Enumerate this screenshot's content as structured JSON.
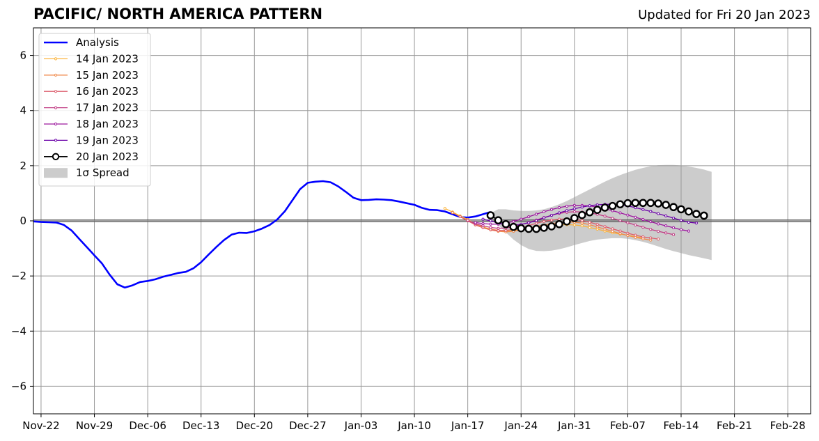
{
  "title": "PACIFIC/ NORTH AMERICA PATTERN",
  "subtitle": "Updated for Fri 20 Jan 2023",
  "chart_data": {
    "type": "line",
    "title": "PACIFIC/ NORTH AMERICA PATTERN",
    "subtitle": "Updated for Fri 20 Jan 2023",
    "xlabel": "",
    "ylabel": "",
    "ylim": [
      -7,
      7
    ],
    "xlim": [
      "2022-11-21",
      "2023-03-03"
    ],
    "x_ticks": [
      "Nov-22",
      "Nov-29",
      "Dec-06",
      "Dec-13",
      "Dec-20",
      "Dec-27",
      "Jan-03",
      "Jan-10",
      "Jan-17",
      "Jan-24",
      "Jan-31",
      "Feb-07",
      "Feb-14",
      "Feb-21",
      "Feb-28"
    ],
    "y_ticks": [
      -6,
      -4,
      -2,
      0,
      2,
      4,
      6
    ],
    "grid": true,
    "legend_position": "top-left",
    "legend": [
      "Analysis",
      "14 Jan 2023",
      "15 Jan 2023",
      "16 Jan 2023",
      "17 Jan 2023",
      "18 Jan 2023",
      "19 Jan 2023",
      "20 Jan 2023",
      "1σ Spread"
    ],
    "colors": {
      "analysis": "#0000ff",
      "14 Jan 2023": "#fbb33a",
      "15 Jan 2023": "#f08a4b",
      "16 Jan 2023": "#dc5c6b",
      "17 Jan 2023": "#c03a83",
      "18 Jan 2023": "#9c179e",
      "19 Jan 2023": "#6a00a8",
      "20 Jan 2023": "#000000",
      "spread": "#cccccc",
      "zero_line": "#444444",
      "grid": "#999999"
    },
    "analysis": {
      "start_date": "2022-11-21",
      "values": [
        -0.02,
        -0.04,
        -0.05,
        -0.06,
        -0.15,
        -0.35,
        -0.65,
        -0.95,
        -1.25,
        -1.55,
        -1.95,
        -2.3,
        -2.42,
        -2.34,
        -2.22,
        -2.18,
        -2.12,
        -2.03,
        -1.96,
        -1.89,
        -1.85,
        -1.72,
        -1.5,
        -1.22,
        -0.95,
        -0.7,
        -0.5,
        -0.43,
        -0.44,
        -0.38,
        -0.28,
        -0.15,
        0.05,
        0.35,
        0.75,
        1.15,
        1.38,
        1.42,
        1.44,
        1.4,
        1.25,
        1.05,
        0.84,
        0.75,
        0.76,
        0.78,
        0.77,
        0.75,
        0.7,
        0.64,
        0.58,
        0.47,
        0.4,
        0.39,
        0.34,
        0.24,
        0.14,
        0.12,
        0.16,
        0.24,
        0.32
      ]
    },
    "forecasts": [
      {
        "name": "14 Jan 2023",
        "start_date": "2023-01-14",
        "values": [
          0.45,
          0.32,
          0.18,
          0.05,
          -0.12,
          -0.22,
          -0.3,
          -0.34,
          -0.38,
          -0.36,
          -0.32,
          -0.28,
          -0.24,
          -0.2,
          -0.16,
          -0.14,
          -0.14,
          -0.15,
          -0.18,
          -0.24,
          -0.3,
          -0.37,
          -0.43,
          -0.48,
          -0.52,
          -0.57,
          -0.62
        ]
      },
      {
        "name": "15 Jan 2023",
        "start_date": "2023-01-15",
        "values": [
          0.3,
          0.15,
          0.02,
          -0.15,
          -0.25,
          -0.33,
          -0.38,
          -0.4,
          -0.38,
          -0.33,
          -0.27,
          -0.2,
          -0.15,
          -0.1,
          -0.06,
          -0.04,
          -0.05,
          -0.08,
          -0.14,
          -0.22,
          -0.3,
          -0.38,
          -0.46,
          -0.53,
          -0.6,
          -0.65,
          -0.7
        ]
      },
      {
        "name": "16 Jan 2023",
        "start_date": "2023-01-16",
        "values": [
          0.15,
          0.0,
          -0.14,
          -0.25,
          -0.32,
          -0.35,
          -0.35,
          -0.31,
          -0.25,
          -0.17,
          -0.09,
          -0.02,
          0.03,
          0.06,
          0.07,
          0.05,
          0.01,
          -0.05,
          -0.13,
          -0.21,
          -0.29,
          -0.37,
          -0.45,
          -0.52,
          -0.58,
          -0.62,
          -0.66
        ]
      },
      {
        "name": "17 Jan 2023",
        "start_date": "2023-01-17",
        "values": [
          0.02,
          -0.1,
          -0.18,
          -0.24,
          -0.27,
          -0.26,
          -0.21,
          -0.14,
          -0.06,
          0.03,
          0.12,
          0.2,
          0.27,
          0.31,
          0.33,
          0.32,
          0.29,
          0.24,
          0.17,
          0.09,
          0.01,
          -0.07,
          -0.15,
          -0.23,
          -0.31,
          -0.38,
          -0.44,
          -0.5
        ]
      },
      {
        "name": "18 Jan 2023",
        "start_date": "2023-01-18",
        "values": [
          -0.06,
          -0.1,
          -0.12,
          -0.12,
          -0.08,
          -0.02,
          0.06,
          0.15,
          0.24,
          0.33,
          0.41,
          0.48,
          0.53,
          0.56,
          0.56,
          0.54,
          0.5,
          0.44,
          0.37,
          0.29,
          0.21,
          0.13,
          0.05,
          -0.03,
          -0.11,
          -0.18,
          -0.25,
          -0.32,
          -0.37
        ]
      },
      {
        "name": "19 Jan 2023",
        "start_date": "2023-01-19",
        "values": [
          0.06,
          0.0,
          -0.08,
          -0.14,
          -0.16,
          -0.13,
          -0.07,
          0.01,
          0.11,
          0.2,
          0.29,
          0.37,
          0.44,
          0.5,
          0.55,
          0.58,
          0.6,
          0.6,
          0.58,
          0.54,
          0.48,
          0.41,
          0.34,
          0.26,
          0.18,
          0.1,
          0.02,
          -0.05,
          -0.08
        ]
      },
      {
        "name": "20 Jan 2023",
        "start_date": "2023-01-20",
        "values": [
          0.2,
          0.02,
          -0.12,
          -0.22,
          -0.27,
          -0.29,
          -0.29,
          -0.25,
          -0.2,
          -0.12,
          -0.02,
          0.1,
          0.21,
          0.31,
          0.4,
          0.48,
          0.54,
          0.6,
          0.64,
          0.65,
          0.65,
          0.65,
          0.63,
          0.58,
          0.5,
          0.42,
          0.34,
          0.25,
          0.19
        ]
      }
    ],
    "spread": {
      "label": "1σ Spread",
      "start_date": "2023-01-20",
      "upper": [
        0.28,
        0.42,
        0.42,
        0.38,
        0.36,
        0.36,
        0.38,
        0.42,
        0.5,
        0.6,
        0.72,
        0.86,
        1.0,
        1.14,
        1.28,
        1.42,
        1.55,
        1.66,
        1.76,
        1.85,
        1.92,
        1.98,
        2.02,
        2.03,
        2.03,
        2.01,
        1.97,
        1.92,
        1.86,
        1.78
      ],
      "lower": [
        0.12,
        -0.15,
        -0.42,
        -0.68,
        -0.88,
        -1.02,
        -1.09,
        -1.1,
        -1.08,
        -1.03,
        -0.96,
        -0.88,
        -0.8,
        -0.73,
        -0.68,
        -0.65,
        -0.63,
        -0.63,
        -0.65,
        -0.7,
        -0.76,
        -0.84,
        -0.93,
        -1.02,
        -1.1,
        -1.17,
        -1.24,
        -1.3,
        -1.36,
        -1.42
      ]
    }
  }
}
